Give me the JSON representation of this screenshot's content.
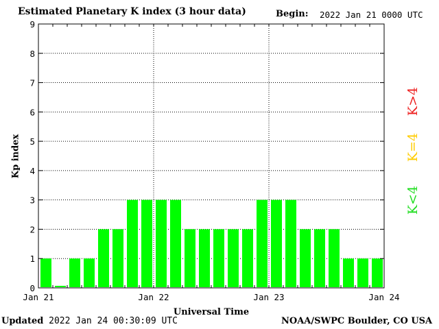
{
  "header": {
    "title": "Estimated Planetary K index (3 hour data)",
    "begin_label": "Begin:",
    "begin_value": "2022 Jan 21 0000 UTC"
  },
  "footer": {
    "updated_label": "Updated",
    "updated_value": "2022 Jan 24 00:30:09 UTC",
    "credit": "NOAA/SWPC Boulder, CO USA"
  },
  "legend": [
    {
      "label": "K<4",
      "color": "#22dd22"
    },
    {
      "label": "K=4",
      "color": "#ffcc00"
    },
    {
      "label": "K>4",
      "color": "#ee2222"
    }
  ],
  "colors": {
    "bar": "#00ff00",
    "axis": "#000000",
    "grid": "#000000"
  },
  "chart_data": {
    "type": "bar",
    "title": "Estimated Planetary K index (3 hour data)",
    "xlabel": "Universal Time",
    "ylabel": "Kp index",
    "ylim": [
      0,
      9
    ],
    "yticks": [
      "0",
      "1",
      "2",
      "3",
      "4",
      "5",
      "6",
      "7",
      "8",
      "9"
    ],
    "xticks": [
      "Jan 21",
      "Jan 22",
      "Jan 23",
      "Jan 24"
    ],
    "grid": true,
    "interval_hours": 3,
    "values": [
      1,
      0.07,
      1,
      1,
      2,
      2,
      3,
      3,
      3,
      3,
      2,
      2,
      2,
      2,
      2,
      3,
      3,
      3,
      2,
      2,
      2,
      1,
      1,
      1
    ]
  }
}
